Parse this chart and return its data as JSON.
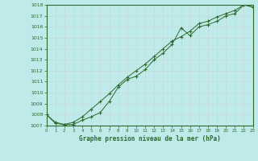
{
  "title": "Graphe pression niveau de la mer (hPa)",
  "background_color": "#beeaea",
  "grid_color": "#c8d8d8",
  "line_color": "#2d6a2d",
  "spine_color": "#2d6a2d",
  "x_min": 0,
  "x_max": 23,
  "y_min": 1007,
  "y_max": 1018,
  "x_ticks": [
    0,
    1,
    2,
    3,
    4,
    5,
    6,
    7,
    8,
    9,
    10,
    11,
    12,
    13,
    14,
    15,
    16,
    17,
    18,
    19,
    20,
    21,
    22,
    23
  ],
  "y_ticks": [
    1007,
    1008,
    1009,
    1010,
    1011,
    1012,
    1013,
    1014,
    1015,
    1016,
    1017,
    1018
  ],
  "series1_x": [
    0,
    1,
    2,
    3,
    4,
    5,
    6,
    7,
    8,
    9,
    10,
    11,
    12,
    13,
    14,
    15,
    16,
    17,
    18,
    19,
    20,
    21,
    22,
    23
  ],
  "series1_y": [
    1008.0,
    1007.2,
    1007.1,
    1007.1,
    1007.5,
    1007.8,
    1008.2,
    1009.2,
    1010.5,
    1011.2,
    1011.5,
    1012.1,
    1013.0,
    1013.6,
    1014.4,
    1015.9,
    1015.2,
    1016.0,
    1016.2,
    1016.5,
    1017.0,
    1017.2,
    1018.0,
    1017.8
  ],
  "series2_x": [
    0,
    1,
    2,
    3,
    4,
    5,
    6,
    7,
    8,
    9,
    10,
    11,
    12,
    13,
    14,
    15,
    16,
    17,
    18,
    19,
    20,
    21,
    22,
    23
  ],
  "series2_y": [
    1008.0,
    1007.3,
    1007.1,
    1007.3,
    1007.8,
    1008.5,
    1009.2,
    1009.9,
    1010.7,
    1011.4,
    1012.0,
    1012.6,
    1013.3,
    1014.0,
    1014.7,
    1015.1,
    1015.6,
    1016.3,
    1016.5,
    1016.9,
    1017.2,
    1017.5,
    1018.0,
    1017.8
  ]
}
